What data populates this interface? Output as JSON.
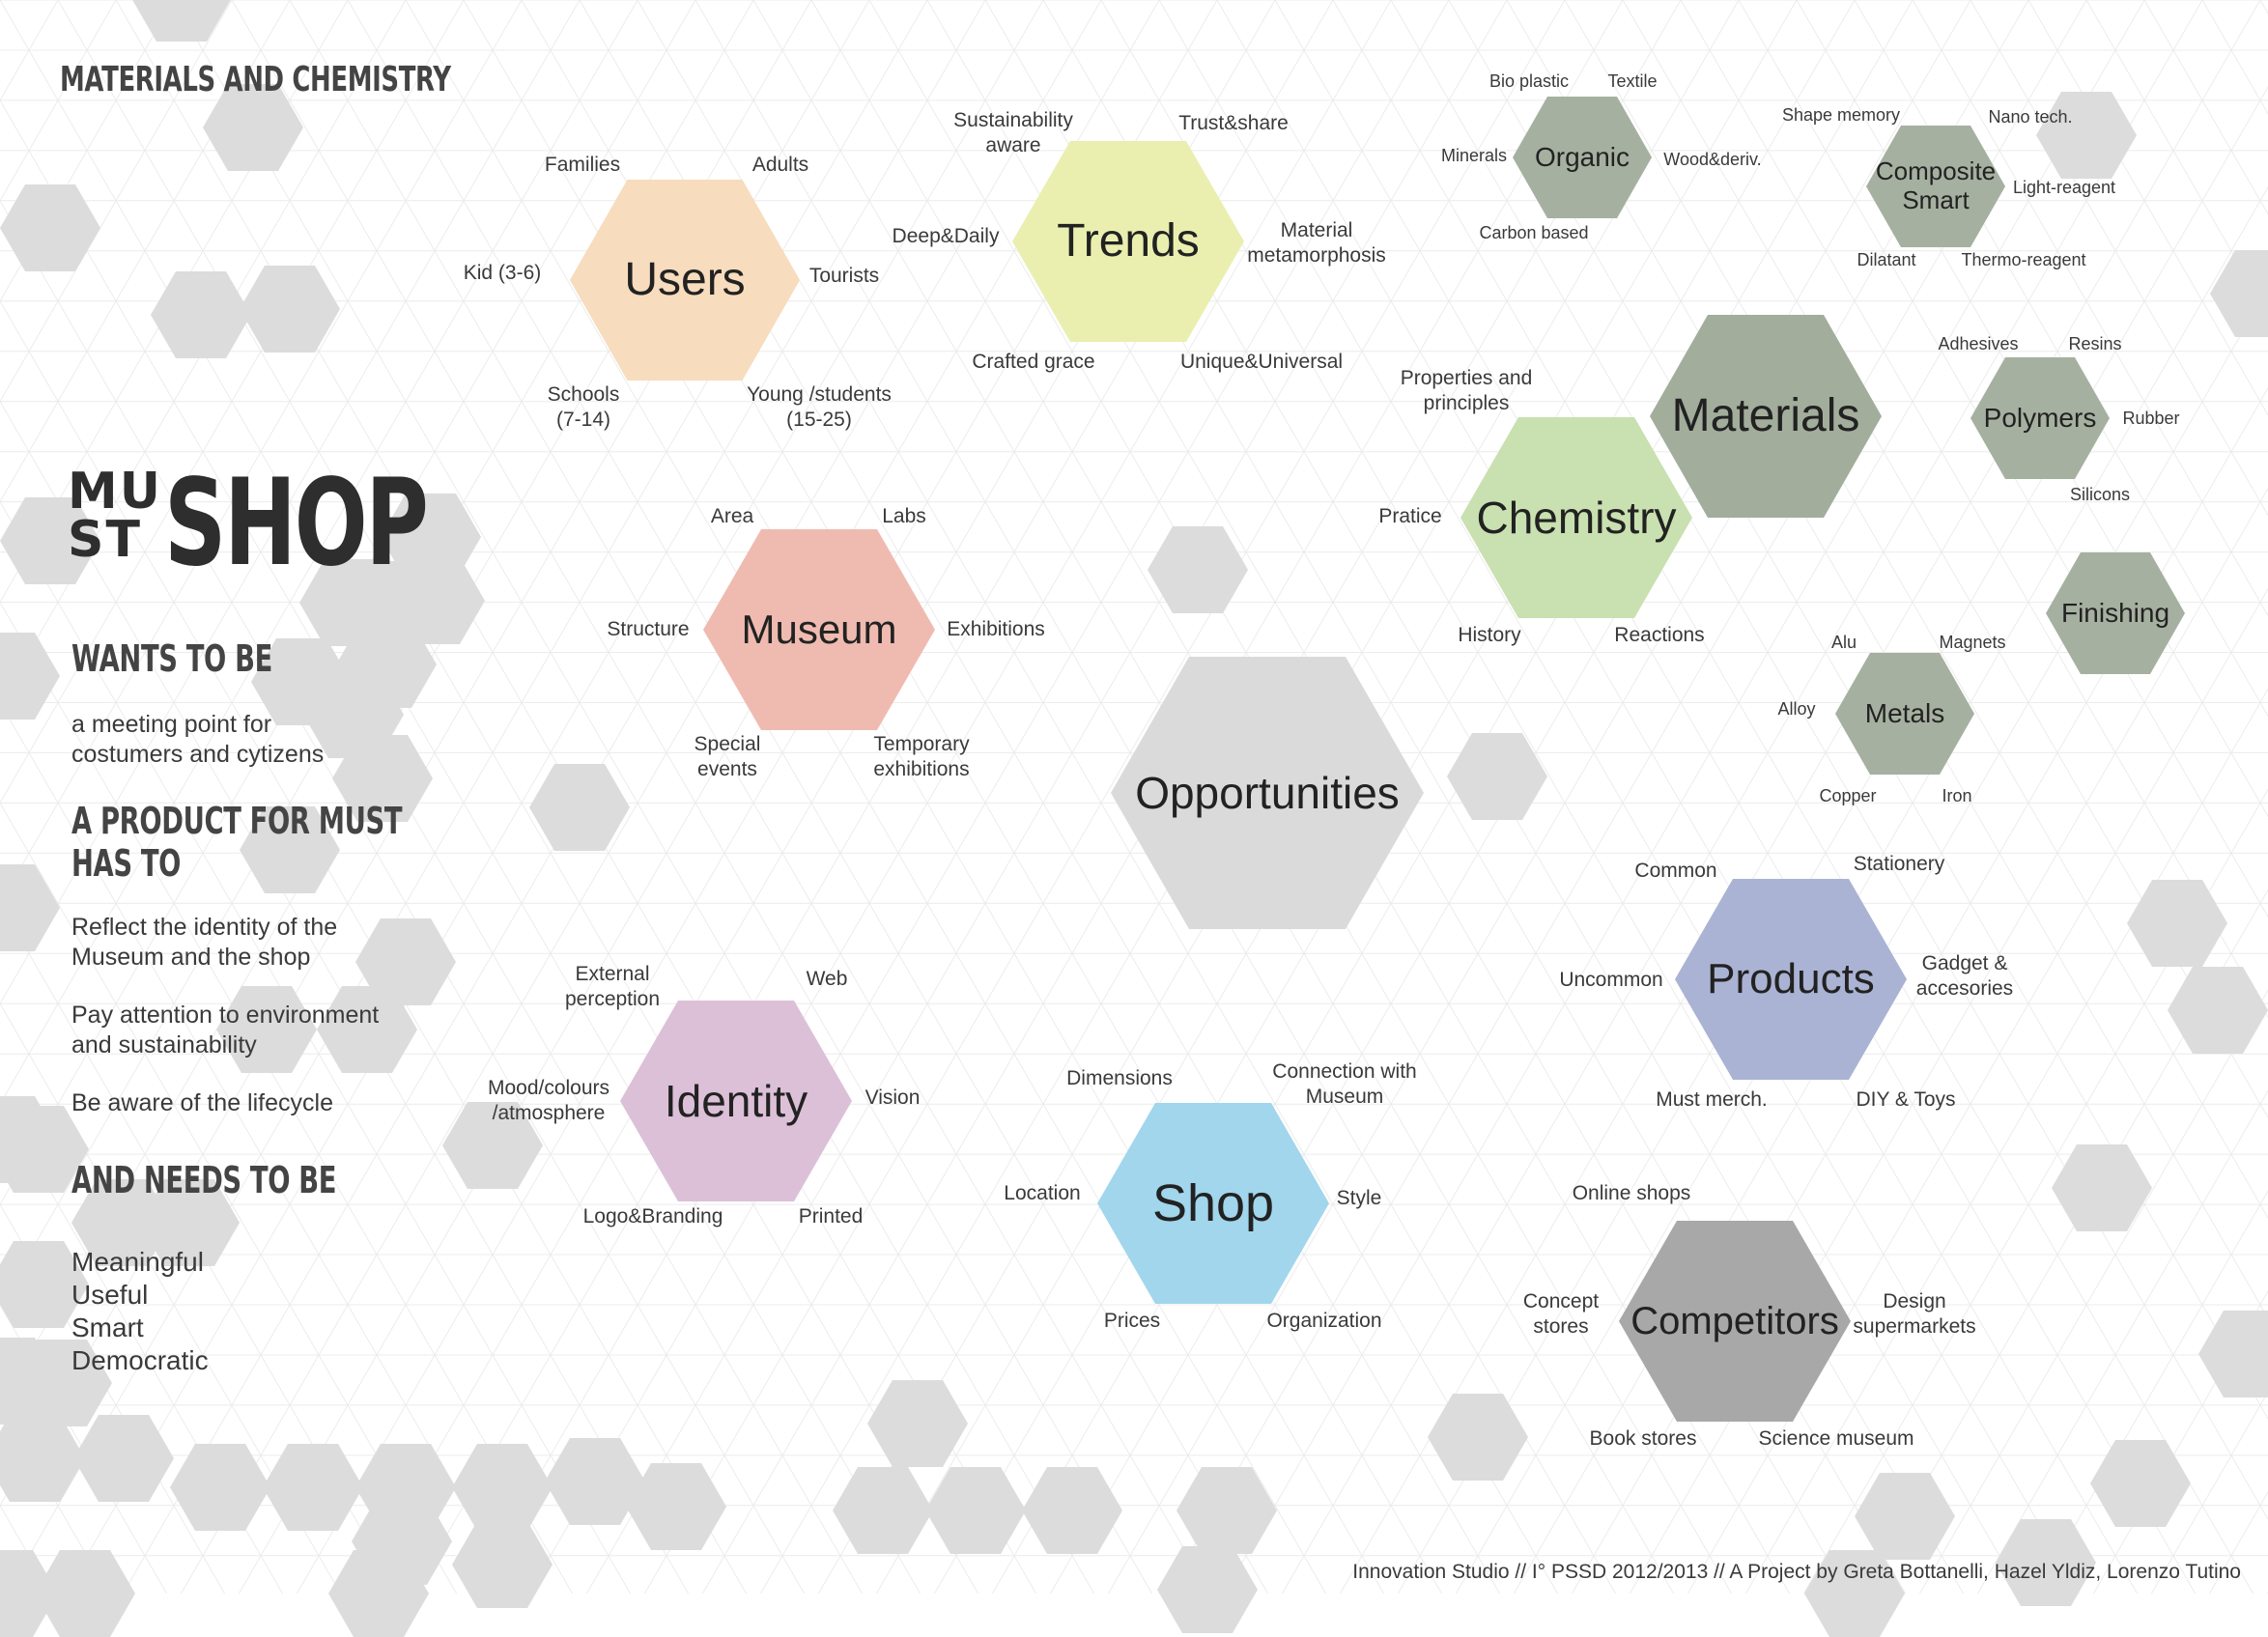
{
  "header": {
    "title": "MATERIALS AND CHEMISTRY"
  },
  "logo": {
    "must_top": "MU",
    "must_bottom": "ST",
    "shop": "SHOP"
  },
  "sidebar": {
    "wants_heading": "WANTS TO BE",
    "wants_text": "a meeting point for\ncostumers and cytizens",
    "product_heading_1": "A PRODUCT FOR MUST",
    "product_heading_2": "HAS TO",
    "product_items": [
      "Reflect the identity of the\nMuseum and the shop",
      "Pay attention to environment\nand sustainability",
      "Be aware of the lifecycle"
    ],
    "needs_heading": "AND NEEDS TO BE",
    "needs_items": [
      "Meaningful",
      "Useful",
      "Smart",
      "Democratic"
    ]
  },
  "colors": {
    "users": "#f7dcbd",
    "trends": "#eaefb0",
    "museum": "#efbbb0",
    "chemistry": "#c9e0b0",
    "materials": "#a2ad9b",
    "opportunities": "#dadada",
    "identity": "#dcc0d7",
    "shop": "#a1d6ec",
    "products": "#aab3d3",
    "competitors": "#a8a8a8",
    "sub": "#a6b0a0",
    "deco": "#dcdcdc"
  },
  "hexes": {
    "users": "Users",
    "trends": "Trends",
    "museum": "Museum",
    "chemistry": "Chemistry",
    "materials": "Materials",
    "opportunities": "Opportunities",
    "identity": "Identity",
    "shop": "Shop",
    "products": "Products",
    "competitors": "Competitors",
    "organic": "Organic",
    "composite": "Composite\nSmart",
    "polymers": "Polymers",
    "finishing": "Finishing",
    "metals": "Metals"
  },
  "labels": {
    "users": [
      "Families",
      "Adults",
      "Kid (3-6)",
      "Tourists",
      "Schools\n(7-14)",
      "Young /students\n(15-25)"
    ],
    "trends": [
      "Sustainability\naware",
      "Trust&share",
      "Deep&Daily",
      "Material\nmetamorphosis",
      "Crafted grace",
      "Unique&Universal"
    ],
    "museum": [
      "Area",
      "Labs",
      "Structure",
      "Exhibitions",
      "Special\nevents",
      "Temporary\nexhibitions"
    ],
    "chemistry": [
      "Properties and\nprinciples",
      "Pratice",
      "History",
      "Reactions"
    ],
    "identity": [
      "External\nperception",
      "Web",
      "Mood/colours\n/atmosphere",
      "Vision",
      "Logo&Branding",
      "Printed"
    ],
    "shop": [
      "Dimensions",
      "Connection with\nMuseum",
      "Location",
      "Style",
      "Prices",
      "Organization"
    ],
    "products": [
      "Common",
      "Stationery",
      "Uncommon",
      "Gadget &\naccesories",
      "Must merch.",
      "DIY & Toys"
    ],
    "competitors": [
      "Online shops",
      "Concept\nstores",
      "Design\nsupermarkets",
      "Book stores",
      "Science museum"
    ],
    "organic": [
      "Bio plastic",
      "Textile",
      "Minerals",
      "Wood&deriv.",
      "Carbon based"
    ],
    "composite": [
      "Shape memory",
      "Nano tech.",
      "Light-reagent",
      "Dilatant",
      "Thermo-reagent"
    ],
    "polymers": [
      "Adhesives",
      "Resins",
      "Rubber",
      "Silicons"
    ],
    "metals": [
      "Alu",
      "Magnets",
      "Alloy",
      "Copper",
      "Iron"
    ]
  },
  "footer": "Innovation Studio // I° PSSD 2012/2013 // A Project by Greta Bottanelli, Hazel Yldiz, Lorenzo Tutino"
}
